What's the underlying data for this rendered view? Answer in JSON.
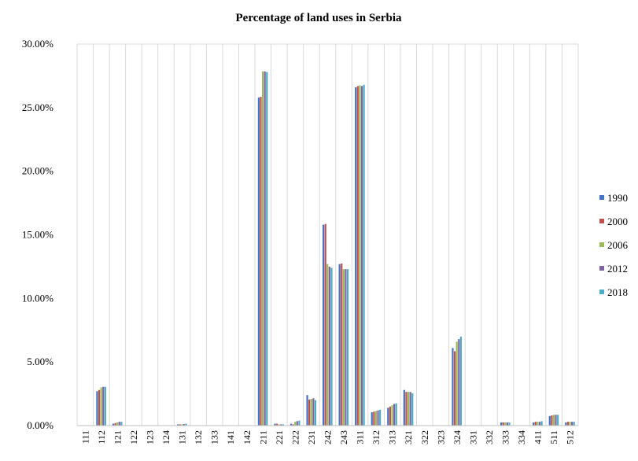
{
  "chart_data": {
    "type": "bar",
    "title": "Percentage of land uses in Serbia",
    "xlabel": "",
    "ylabel": "",
    "ylim": [
      0,
      30
    ],
    "yticks": [
      "0.00%",
      "5.00%",
      "10.00%",
      "15.00%",
      "20.00%",
      "25.00%",
      "30.00%"
    ],
    "grid": "vertical",
    "legend_position": "right",
    "categories": [
      "111",
      "112",
      "121",
      "122",
      "123",
      "124",
      "131",
      "132",
      "133",
      "141",
      "142",
      "211",
      "221",
      "222",
      "231",
      "242",
      "243",
      "311",
      "312",
      "313",
      "321",
      "322",
      "323",
      "324",
      "331",
      "332",
      "333",
      "334",
      "411",
      "511",
      "512"
    ],
    "series": [
      {
        "name": "1990",
        "color": "#4472C4",
        "values": [
          0,
          2.7,
          0.15,
          0,
          0,
          0,
          0.1,
          0,
          0,
          0,
          0,
          25.8,
          0.15,
          0.15,
          2.4,
          15.8,
          12.7,
          26.6,
          1.05,
          1.4,
          2.8,
          0,
          0,
          6.1,
          0,
          0,
          0.25,
          0,
          0.25,
          0.75,
          0.25
        ]
      },
      {
        "name": "2000",
        "color": "#C0504D",
        "values": [
          0,
          2.8,
          0.2,
          0,
          0,
          0,
          0.1,
          0,
          0,
          0,
          0,
          25.85,
          0.15,
          0.1,
          2.05,
          15.85,
          12.75,
          26.7,
          1.1,
          1.5,
          2.65,
          0,
          0,
          5.85,
          0,
          0,
          0.25,
          0,
          0.3,
          0.8,
          0.3
        ]
      },
      {
        "name": "2006",
        "color": "#9BBB59",
        "values": [
          0,
          3.0,
          0.25,
          0,
          0,
          0,
          0.1,
          0,
          0,
          0,
          0,
          27.85,
          0.1,
          0.3,
          2.1,
          12.7,
          12.3,
          26.75,
          1.15,
          1.6,
          2.65,
          0,
          0,
          6.6,
          0,
          0,
          0.25,
          0,
          0.3,
          0.85,
          0.3
        ]
      },
      {
        "name": "2012",
        "color": "#8064A2",
        "values": [
          0,
          3.05,
          0.3,
          0,
          0,
          0,
          0.12,
          0,
          0,
          0,
          0,
          27.85,
          0.1,
          0.35,
          2.15,
          12.5,
          12.3,
          26.7,
          1.2,
          1.7,
          2.65,
          0,
          0,
          6.8,
          0,
          0,
          0.25,
          0,
          0.3,
          0.85,
          0.3
        ]
      },
      {
        "name": "2018",
        "color": "#4BACC6",
        "values": [
          0,
          3.05,
          0.3,
          0,
          0,
          0,
          0.15,
          0,
          0,
          0,
          0,
          27.8,
          0.1,
          0.4,
          2.0,
          12.4,
          12.3,
          26.8,
          1.25,
          1.75,
          2.55,
          0,
          0,
          7.0,
          0,
          0,
          0.25,
          0,
          0.35,
          0.85,
          0.3
        ]
      }
    ]
  }
}
